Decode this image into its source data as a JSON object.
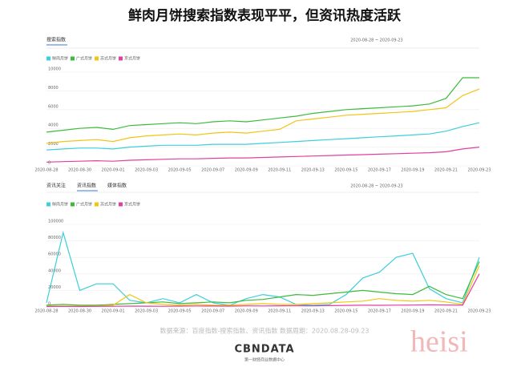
{
  "header": {
    "title": "鲜肉月饼搜索指数表现平平，但资讯热度活跃"
  },
  "chart_data": [
    {
      "type": "line",
      "tabs": [
        "搜索指数"
      ],
      "date_range": "2020-08-28 ~ 2020-09-23",
      "categories": [
        "2020-08-28",
        null,
        "2020-08-30",
        null,
        "2020-09-01",
        null,
        "2020-09-03",
        null,
        "2020-09-05",
        null,
        "2020-09-07",
        null,
        "2020-09-09",
        null,
        "2020-09-11",
        null,
        "2020-09-13",
        null,
        "2020-09-15",
        null,
        "2020-09-17",
        null,
        "2020-09-19",
        null,
        "2020-09-21",
        null,
        "2020-09-23"
      ],
      "ylim": [
        0,
        10000
      ],
      "yticks": [
        0,
        2000,
        4000,
        6000,
        8000,
        10000
      ],
      "grid": true,
      "series": [
        {
          "name": "鲜肉月饼",
          "color": "#3ccfdc",
          "values": [
            1700,
            1800,
            1900,
            1900,
            1800,
            2000,
            2100,
            2200,
            2200,
            2200,
            2300,
            2300,
            2300,
            2400,
            2500,
            2600,
            2700,
            2800,
            2900,
            3000,
            3100,
            3200,
            3300,
            3400,
            3700,
            4200,
            4600
          ]
        },
        {
          "name": "广式月饼",
          "color": "#3dbb3d",
          "values": [
            3600,
            3800,
            4000,
            4100,
            3900,
            4300,
            4400,
            4500,
            4600,
            4500,
            4700,
            4800,
            4700,
            4900,
            5100,
            5300,
            5600,
            5800,
            6000,
            6100,
            6200,
            6300,
            6400,
            6600,
            7200,
            9400,
            9400
          ]
        },
        {
          "name": "苏式月饼",
          "color": "#f2c515",
          "values": [
            2400,
            2600,
            2700,
            2800,
            2600,
            3000,
            3200,
            3300,
            3400,
            3300,
            3500,
            3600,
            3500,
            3700,
            3900,
            4800,
            5000,
            5200,
            5400,
            5500,
            5600,
            5700,
            5800,
            6000,
            6200,
            7500,
            8200
          ]
        },
        {
          "name": "京式月饼",
          "color": "#e040a0",
          "values": [
            400,
            450,
            500,
            550,
            500,
            600,
            650,
            700,
            750,
            750,
            800,
            850,
            850,
            900,
            950,
            1000,
            1050,
            1100,
            1150,
            1200,
            1250,
            1300,
            1350,
            1400,
            1500,
            1800,
            2000
          ]
        }
      ]
    },
    {
      "type": "line",
      "tabs": [
        "资讯关注",
        "资讯指数",
        "媒体指数"
      ],
      "date_range": "2020-08-28 ~ 2020-09-23",
      "categories": [
        "2020-08-28",
        null,
        "2020-08-30",
        null,
        "2020-09-01",
        null,
        "2020-09-03",
        null,
        "2020-09-05",
        null,
        "2020-09-07",
        null,
        "2020-09-09",
        null,
        "2020-09-11",
        null,
        "2020-09-13",
        null,
        "2020-09-15",
        null,
        "2020-09-17",
        null,
        "2020-09-19",
        null,
        "2020-09-21",
        null,
        "2020-09-23"
      ],
      "ylim": [
        0,
        100000
      ],
      "yticks": [
        0,
        20000,
        40000,
        60000,
        80000,
        100000
      ],
      "grid": true,
      "series": [
        {
          "name": "鲜肉月饼",
          "color": "#3ccfdc",
          "values": [
            5000,
            90000,
            20000,
            28000,
            28000,
            8000,
            5000,
            10000,
            5000,
            15000,
            5000,
            2000,
            10000,
            15000,
            12000,
            3000,
            2000,
            3000,
            15000,
            35000,
            42000,
            60000,
            65000,
            22000,
            10000,
            5000,
            60000
          ]
        },
        {
          "name": "广式月饼",
          "color": "#3dbb3d",
          "values": [
            2000,
            3000,
            2000,
            2000,
            3000,
            4000,
            5000,
            6000,
            4000,
            5000,
            6000,
            5000,
            8000,
            9000,
            12000,
            15000,
            14000,
            16000,
            18000,
            20000,
            18000,
            16000,
            15000,
            25000,
            15000,
            10000,
            55000
          ]
        },
        {
          "name": "苏式月饼",
          "color": "#f2c515",
          "values": [
            1000,
            1000,
            1000,
            1000,
            2000,
            15000,
            5000,
            3000,
            2000,
            3000,
            2000,
            2000,
            3000,
            4000,
            3000,
            3000,
            4000,
            5000,
            6000,
            7000,
            10000,
            8000,
            7000,
            8000,
            6000,
            3000,
            50000
          ]
        },
        {
          "name": "京式月饼",
          "color": "#e040a0",
          "values": [
            500,
            600,
            500,
            700,
            800,
            1000,
            900,
            800,
            1000,
            1200,
            1100,
            1000,
            1300,
            1200,
            1400,
            1500,
            1300,
            1600,
            1800,
            2000,
            1900,
            2100,
            2200,
            2500,
            2300,
            2000,
            40000
          ]
        }
      ]
    }
  ],
  "footer": {
    "source": "数据来源：百度指数-搜索指数、资讯指数    数据周期：2020.08.28-09.23",
    "logo": "CBNDATA",
    "logo_sub": "第一财经商业数据中心",
    "watermark": "heisi"
  }
}
